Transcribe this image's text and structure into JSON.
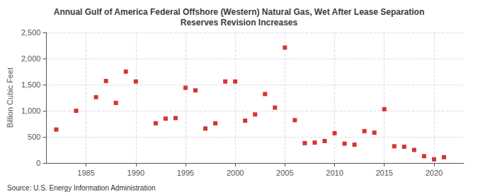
{
  "chart_data": {
    "type": "scatter",
    "title": "Annual Gulf of America Federal Offshore (Western) Natural Gas, Wet After Lease Separation\nReserves Revision Increases",
    "ylabel": "Billion Cubic Feet",
    "annotations": [
      "Source: U.S. Energy Information Administration"
    ],
    "x": [
      1982,
      1984,
      1986,
      1987,
      1988,
      1989,
      1990,
      1992,
      1993,
      1994,
      1995,
      1996,
      1997,
      1998,
      1999,
      2000,
      2001,
      2002,
      2003,
      2004,
      2005,
      2006,
      2007,
      2008,
      2009,
      2010,
      2011,
      2012,
      2013,
      2014,
      2015,
      2016,
      2017,
      2018,
      2019,
      2020,
      2021
    ],
    "values": [
      640,
      1000,
      1260,
      1570,
      1150,
      1750,
      1560,
      760,
      850,
      860,
      1440,
      1390,
      660,
      760,
      1560,
      1560,
      810,
      930,
      1320,
      1060,
      2210,
      820,
      380,
      390,
      420,
      570,
      370,
      350,
      610,
      580,
      1030,
      320,
      310,
      250,
      130,
      70,
      110
    ],
    "color": "#cc0000",
    "marker": "square",
    "xlim": [
      1981,
      2023
    ],
    "xticks": [
      1985,
      1990,
      1995,
      2000,
      2005,
      2010,
      2015,
      2020
    ],
    "ylim": [
      0,
      2500
    ],
    "yticks": [
      0,
      500,
      {
        "value": 1000,
        "label": "1,000"
      },
      {
        "value": 1500,
        "label": "1,500"
      },
      {
        "value": 2000,
        "label": "2,000"
      },
      {
        "value": 2500,
        "label": "2,500"
      }
    ],
    "grid": true
  }
}
